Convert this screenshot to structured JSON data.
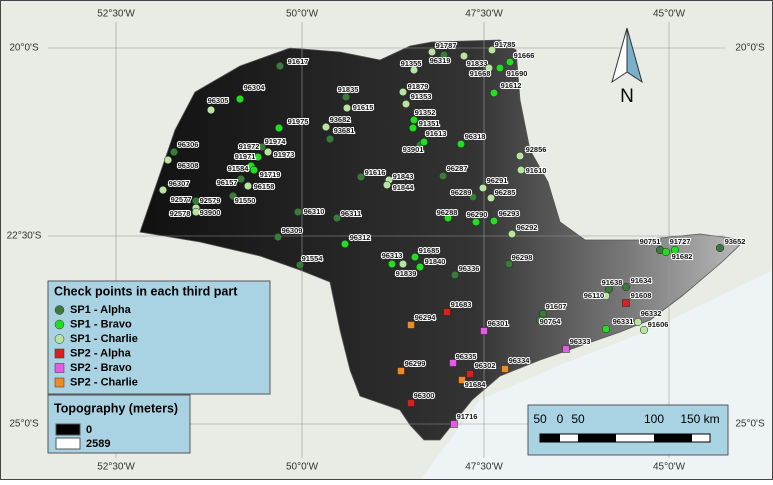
{
  "map": {
    "grid_labels": {
      "top": [
        "52°30'W",
        "50°0'W",
        "47°30'W",
        "45°0'W"
      ],
      "bottom": [
        "52°30'W",
        "50°0'W",
        "47°30'W",
        "45°0'W"
      ],
      "left": [
        "20°0'S",
        "22°30'S",
        "25°0'S"
      ],
      "right": [
        "20°0'S",
        "25°0'S"
      ]
    },
    "legend": {
      "title": "Check points in each third part",
      "items": [
        {
          "label": "SP1 - Alpha",
          "color": "#3a7a3a",
          "points": [
            "91617",
            "91835",
            "96319",
            "93681",
            "93901",
            "96306",
            "91972",
            "91974",
            "96157",
            "91550",
            "92577",
            "92578",
            "91616",
            "96287",
            "96289",
            "96310",
            "96311",
            "96309",
            "90751",
            "93652",
            "91554",
            "96336",
            "96298",
            "91638",
            "91634",
            "91607",
            "90764"
          ]
        },
        {
          "label": "SP1 - Bravo",
          "color": "#22dd22",
          "points": [
            "96304",
            "91666",
            "91690",
            "91612",
            "91975",
            "91352",
            "91351",
            "91613",
            "96318",
            "91971",
            "91584",
            "91719",
            "96288",
            "96290",
            "96293",
            "96312",
            "91727",
            "91682",
            "96313",
            "91685",
            "91840",
            "96331"
          ]
        },
        {
          "label": "SP1 - Charlie",
          "color": "#b8e4a2",
          "points": [
            "96305",
            "91615",
            "91355",
            "91787",
            "91833",
            "91785",
            "91668",
            "91879",
            "91353",
            "93682",
            "91973",
            "96308",
            "96158",
            "96307",
            "92579",
            "93900",
            "91843",
            "91844",
            "92856",
            "91610",
            "96291",
            "96285",
            "96292",
            "91839",
            "96110",
            "96332",
            "91606"
          ]
        },
        {
          "label": "SP2 - Alpha",
          "color": "#d92020",
          "points": [
            "91608",
            "91683",
            "96302",
            "96300"
          ]
        },
        {
          "label": "SP2 - Bravo",
          "color": "#e45ce4",
          "points": [
            "96301",
            "96333",
            "96335",
            "91716"
          ]
        },
        {
          "label": "SP2 - Charlie",
          "color": "#f08a24",
          "points": [
            "96294",
            "96299",
            "96334",
            "91684"
          ]
        }
      ]
    },
    "topography": {
      "title": "Topography (meters)",
      "min_label": "0",
      "max_label": "2589"
    },
    "scale_bar": {
      "labels": [
        "50",
        "0",
        "50",
        "100",
        "150 km"
      ]
    },
    "north_arrow": "N"
  }
}
